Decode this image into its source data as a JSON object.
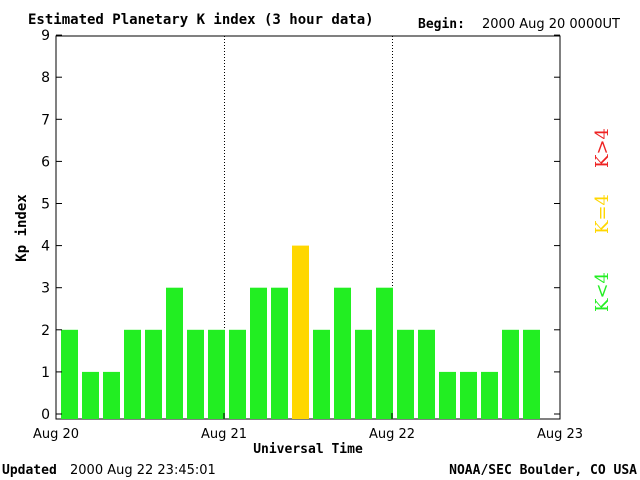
{
  "chart_data": {
    "type": "bar",
    "title": "Estimated Planetary K index (3 hour data)",
    "begin_label": "Begin:",
    "begin_value": "2000 Aug 20 0000UT",
    "ylabel": "Kp index",
    "xlabel": "Universal Time",
    "ylim": [
      0,
      9
    ],
    "yticks": [
      "0",
      "1",
      "2",
      "3",
      "4",
      "5",
      "6",
      "7",
      "8",
      "9"
    ],
    "xlim_hours": [
      0,
      72
    ],
    "xticks": [
      {
        "label": "Aug 20",
        "hour": 0
      },
      {
        "label": "Aug 21",
        "hour": 24
      },
      {
        "label": "Aug 22",
        "hour": 48
      },
      {
        "label": "Aug 23",
        "hour": 72
      }
    ],
    "day_dividers_hours": [
      24,
      48
    ],
    "bar_interval_hours": 3,
    "values": [
      2,
      1,
      1,
      2,
      2,
      3,
      2,
      2,
      2,
      3,
      3,
      4,
      2,
      3,
      2,
      3,
      2,
      2,
      1,
      1,
      1,
      2,
      2
    ],
    "color_scale": [
      {
        "label": "K<4",
        "color": "#22ee22"
      },
      {
        "label": "K=4",
        "color": "#ffd700"
      },
      {
        "label": "K>4",
        "color": "#ee2222"
      }
    ]
  },
  "footer": {
    "updated_label": "Updated",
    "updated_value": "2000 Aug 22 23:45:01",
    "source": "NOAA/SEC Boulder, CO USA"
  }
}
